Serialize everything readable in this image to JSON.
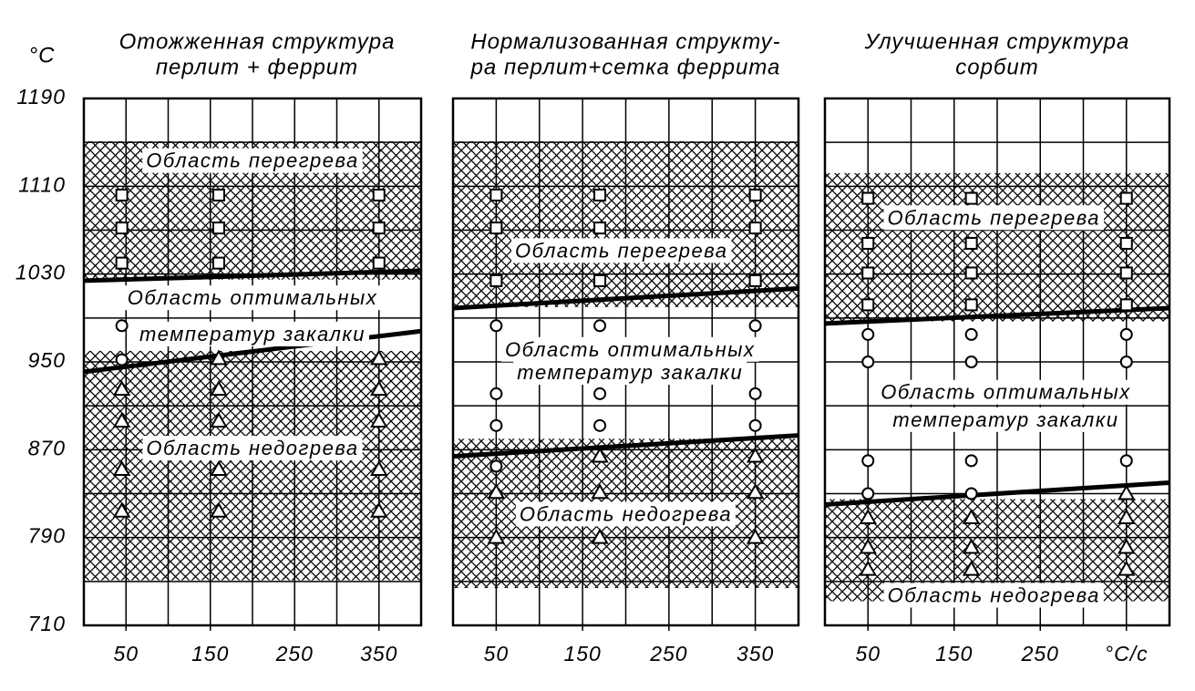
{
  "chart_data": [
    {
      "type": "scatter",
      "title": [
        "Отожженная структура",
        "перлит + феррит"
      ],
      "y_label": "°C",
      "xlim": [
        0,
        400
      ],
      "ylim": [
        710,
        1190
      ],
      "xticks": [
        50,
        150,
        250,
        350
      ],
      "yticks": [
        710,
        790,
        870,
        950,
        1030,
        1110,
        1190
      ],
      "xgrid": [
        50,
        100,
        150,
        200,
        250,
        300,
        350
      ],
      "ygrid": [
        750,
        830,
        910,
        990,
        1070,
        1150
      ],
      "color": "#000000",
      "regions": [
        {
          "values": [
            1025,
            1151
          ]
        },
        {
          "values": [
            751,
            960
          ]
        }
      ],
      "lines": [
        {
          "x": [
            0,
            400
          ],
          "values": [
            1024,
            1033
          ]
        },
        {
          "x": [
            0,
            400
          ],
          "values": [
            941,
            978
          ]
        }
      ],
      "series": [
        {
          "marker": "square",
          "x": [
            45,
            45,
            45,
            160,
            160,
            160,
            350,
            350,
            350
          ],
          "values": [
            1102,
            1072,
            1040,
            1102,
            1072,
            1040,
            1102,
            1072,
            1040
          ]
        },
        {
          "marker": "circle",
          "x": [
            45,
            45
          ],
          "values": [
            983,
            952
          ]
        },
        {
          "marker": "triangle",
          "x": [
            45,
            45,
            45,
            45,
            160,
            160,
            160,
            160,
            160,
            350,
            350,
            350,
            350,
            350
          ],
          "values": [
            925,
            896,
            852,
            814,
            953,
            925,
            896,
            852,
            814,
            953,
            925,
            896,
            852,
            814
          ]
        }
      ],
      "annotations": [
        "Область перегрева",
        "Область оптимальных",
        "температур закалки",
        "Область недогрева"
      ]
    },
    {
      "type": "scatter",
      "title": [
        "Нормализованная структу-",
        "ра перлит+сетка феррита"
      ],
      "xlim": [
        0,
        400
      ],
      "ylim": [
        710,
        1190
      ],
      "xticks": [
        50,
        150,
        250,
        350
      ],
      "yticks": [
        710,
        790,
        870,
        950,
        1030,
        1110,
        1190
      ],
      "xgrid": [
        50,
        100,
        150,
        200,
        250,
        300,
        350
      ],
      "ygrid": [
        750,
        830,
        910,
        990,
        1070,
        1150
      ],
      "color": "#000000",
      "regions": [
        {
          "values": [
            1000,
            1151
          ]
        },
        {
          "values": [
            744,
            880
          ]
        }
      ],
      "lines": [
        {
          "x": [
            0,
            400
          ],
          "values": [
            999,
            1017
          ]
        },
        {
          "x": [
            0,
            400
          ],
          "values": [
            864,
            883
          ]
        }
      ],
      "series": [
        {
          "marker": "square",
          "x": [
            50,
            50,
            50,
            170,
            170,
            170,
            350,
            350,
            350
          ],
          "values": [
            1102,
            1072,
            1024,
            1102,
            1072,
            1024,
            1102,
            1072,
            1024
          ]
        },
        {
          "marker": "circle",
          "x": [
            50,
            50,
            50,
            50,
            170,
            170,
            170,
            350,
            350,
            350
          ],
          "values": [
            983,
            921,
            892,
            855,
            983,
            921,
            892,
            983,
            921,
            892
          ]
        },
        {
          "marker": "triangle",
          "x": [
            50,
            50,
            170,
            170,
            170,
            350,
            350,
            350
          ],
          "values": [
            831,
            790,
            864,
            831,
            790,
            864,
            831,
            790
          ]
        }
      ],
      "annotations": [
        "Область перегрева",
        "Область оптимальных",
        "температур закалки",
        "Область недогрева"
      ]
    },
    {
      "type": "scatter",
      "title": [
        "Улучшенная структура",
        "сорбит"
      ],
      "xlim": [
        0,
        400
      ],
      "ylim": [
        710,
        1190
      ],
      "xticks": [
        50,
        150,
        250,
        {
          "value": 350,
          "label": "°C/с"
        }
      ],
      "yticks": [
        710,
        790,
        870,
        950,
        1030,
        1110,
        1190
      ],
      "xgrid": [
        50,
        100,
        150,
        200,
        250,
        300,
        350
      ],
      "ygrid": [
        750,
        830,
        910,
        990,
        1070,
        1150
      ],
      "color": "#000000",
      "regions": [
        {
          "values": [
            987,
            1122
          ]
        },
        {
          "values": [
            732,
            825
          ]
        }
      ],
      "lines": [
        {
          "x": [
            0,
            400
          ],
          "values": [
            985,
            999
          ]
        },
        {
          "x": [
            0,
            400
          ],
          "values": [
            820,
            840
          ]
        }
      ],
      "series": [
        {
          "marker": "square",
          "x": [
            50,
            50,
            50,
            50,
            170,
            170,
            170,
            170,
            350,
            350,
            350,
            350
          ],
          "values": [
            1099,
            1058,
            1031,
            1002,
            1099,
            1058,
            1031,
            1002,
            1099,
            1058,
            1031,
            1002
          ]
        },
        {
          "marker": "circle",
          "x": [
            50,
            50,
            50,
            50,
            170,
            170,
            170,
            170,
            350,
            350,
            350
          ],
          "values": [
            975,
            950,
            860,
            830,
            975,
            950,
            860,
            830,
            975,
            950,
            860
          ]
        },
        {
          "marker": "triangle",
          "x": [
            50,
            50,
            50,
            170,
            170,
            170,
            350,
            350,
            350,
            350
          ],
          "values": [
            808,
            781,
            761,
            808,
            781,
            761,
            830,
            808,
            781,
            761
          ]
        }
      ],
      "annotations": [
        "Область перегрева",
        "Область оптимальных",
        "температур закалки",
        "Область недогрева"
      ]
    }
  ]
}
